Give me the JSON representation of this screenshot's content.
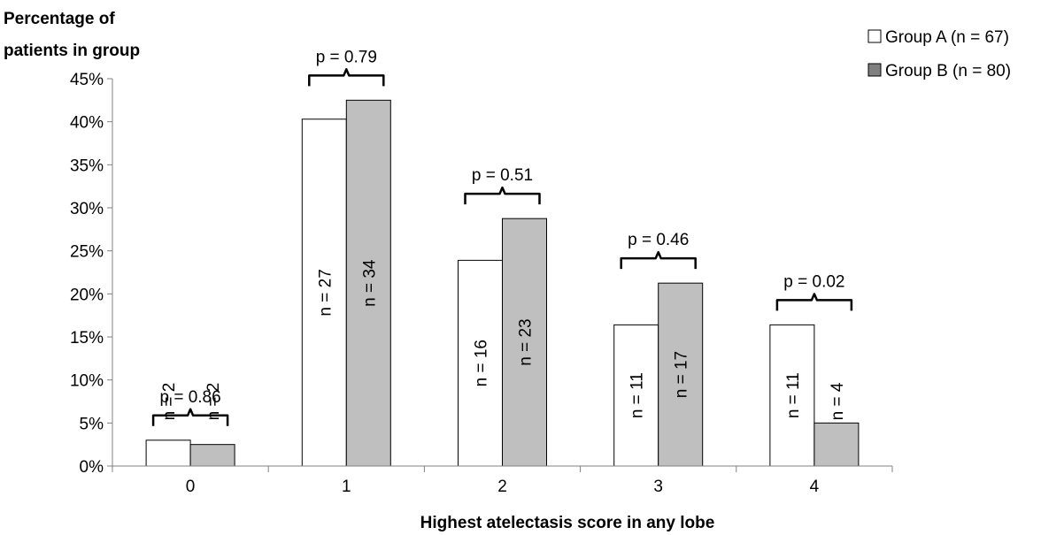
{
  "chart_data": {
    "type": "bar",
    "ylabel": "Percentage of patients in group",
    "ylabel_lines": [
      "Percentage of",
      "patients in group"
    ],
    "xlabel": "Highest atelectasis score in any lobe",
    "categories": [
      "0",
      "1",
      "2",
      "3",
      "4"
    ],
    "ylim": [
      0,
      45
    ],
    "yticks": [
      0,
      5,
      10,
      15,
      20,
      25,
      30,
      35,
      40,
      45
    ],
    "ytick_labels": [
      "0%",
      "5%",
      "10%",
      "15%",
      "20%",
      "25%",
      "30%",
      "35%",
      "40%",
      "45%"
    ],
    "grid": false,
    "legend_position": "top-right",
    "series": [
      {
        "name": "Group A (n = 67)",
        "color": "#ffffff",
        "legend_symbol": "□",
        "values": [
          3.0,
          40.3,
          23.9,
          16.4,
          16.4
        ],
        "n_labels": [
          "n = 2",
          "n = 27",
          "n = 16",
          "n = 11",
          "n = 11"
        ]
      },
      {
        "name": "Group B (n = 80)",
        "color": "#bfbfbf",
        "legend_symbol": "■",
        "values": [
          2.5,
          42.5,
          28.75,
          21.25,
          5.0
        ],
        "n_labels": [
          "n = 2",
          "n = 34",
          "n = 23",
          "n = 17",
          "n = 4"
        ]
      }
    ],
    "p_values": [
      "p = 0.86",
      "p = 0.79",
      "p = 0.51",
      "p = 0.46",
      "p = 0.02"
    ]
  }
}
